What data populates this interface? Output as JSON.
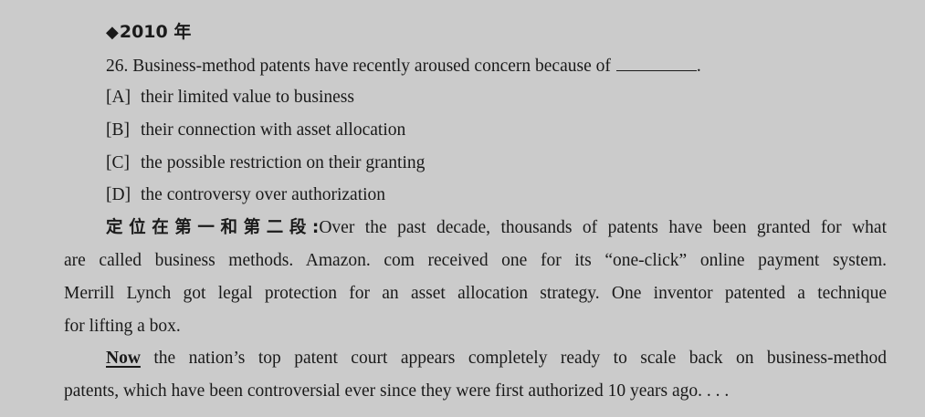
{
  "heading": {
    "symbol": "◆",
    "year": "2010 年"
  },
  "question": {
    "number_text": "26. Business-method patents have recently aroused concern because of",
    "end_punct": "."
  },
  "options": [
    {
      "letter": "[A]",
      "text": "their limited value to business"
    },
    {
      "letter": "[B]",
      "text": "their connection with asset allocation"
    },
    {
      "letter": "[C]",
      "text": "the possible restriction on their granting"
    },
    {
      "letter": "[D]",
      "text": "the controversy over authorization"
    }
  ],
  "passage": {
    "locate_label": "定位在第一和第二段:",
    "p1": {
      "line1": "Over the past decade, thousands of patents have been granted for what",
      "line2": "are called business methods.  Amazon. com received one for its “one-click” online payment system.",
      "line3": "Merrill Lynch got legal protection for an asset allocation strategy.  One inventor patented a technique",
      "line4": "for lifting a box."
    },
    "p2": {
      "bold_word": "Now",
      "line1_rest": " the nation’s top patent court appears completely ready to scale back on business-method",
      "line2": "patents, which have been controversial ever since they were first authorized 10 years ago.  . . ."
    }
  }
}
